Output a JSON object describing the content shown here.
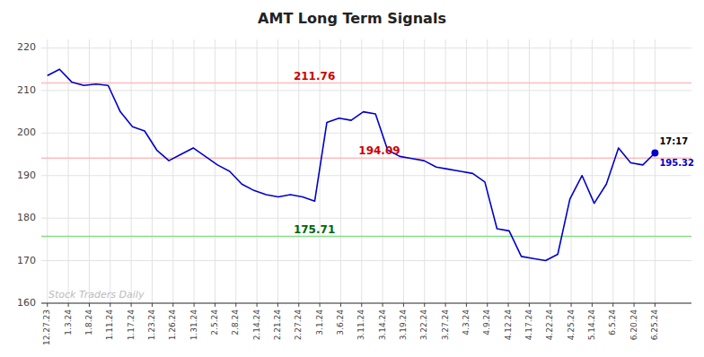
{
  "chart_data": {
    "type": "line",
    "title": "AMT Long Term Signals",
    "x": [
      0,
      1,
      2,
      3,
      4,
      5,
      6,
      7,
      8,
      9,
      10,
      11,
      12,
      13,
      14,
      15,
      16,
      17,
      18,
      19,
      20,
      21,
      22,
      23,
      24,
      25,
      26,
      27,
      28,
      29,
      30,
      31,
      32,
      33,
      34,
      35,
      36,
      37,
      38,
      39,
      40,
      41,
      42,
      43,
      44,
      45,
      46,
      47,
      48,
      49,
      50
    ],
    "values": [
      213.5,
      215.0,
      212.0,
      211.2,
      211.5,
      211.2,
      205.0,
      201.5,
      200.5,
      196.0,
      193.5,
      195.0,
      196.5,
      194.5,
      192.5,
      191.0,
      188.0,
      186.5,
      185.5,
      185.0,
      185.5,
      185.0,
      184.0,
      202.5,
      203.5,
      203.0,
      205.0,
      204.5,
      196.0,
      194.5,
      194.0,
      193.5,
      192.0,
      191.5,
      191.0,
      190.5,
      188.5,
      177.5,
      177.0,
      171.0,
      170.5,
      170.0,
      171.5,
      184.5,
      190.0,
      183.5,
      188.0,
      196.5,
      193.0,
      192.5,
      195.32
    ],
    "color": "#0000cc",
    "xlim": [
      -0.5,
      53
    ],
    "xticks": [
      {
        "value": 0,
        "label": "12.27.23"
      },
      {
        "value": 1.7241379310344827,
        "label": "1.3.24"
      },
      {
        "value": 3.4482758620689653,
        "label": "1.8.24"
      },
      {
        "value": 5.172413793103448,
        "label": "1.11.24"
      },
      {
        "value": 6.896551724137931,
        "label": "1.17.24"
      },
      {
        "value": 8.620689655172413,
        "label": "1.23.24"
      },
      {
        "value": 10.344827586206897,
        "label": "1.26.24"
      },
      {
        "value": 12.068965517241379,
        "label": "1.31.24"
      },
      {
        "value": 13.793103448275861,
        "label": "2.5.24"
      },
      {
        "value": 15.517241379310345,
        "label": "2.8.24"
      },
      {
        "value": 17.241379310344826,
        "label": "2.14.24"
      },
      {
        "value": 18.96551724137931,
        "label": "2.21.24"
      },
      {
        "value": 20.689655172413794,
        "label": "2.27.24"
      },
      {
        "value": 22.413793103448274,
        "label": "3.1.24"
      },
      {
        "value": 24.137931034482758,
        "label": "3.6.24"
      },
      {
        "value": 25.862068965517242,
        "label": "3.11.24"
      },
      {
        "value": 27.586206896551722,
        "label": "3.14.24"
      },
      {
        "value": 29.310344827586206,
        "label": "3.19.24"
      },
      {
        "value": 31.03448275862069,
        "label": "3.22.24"
      },
      {
        "value": 32.758620689655174,
        "label": "3.27.24"
      },
      {
        "value": 34.48275862068966,
        "label": "4.3.24"
      },
      {
        "value": 36.206896551724135,
        "label": "4.9.24"
      },
      {
        "value": 37.93103448275862,
        "label": "4.12.24"
      },
      {
        "value": 39.6551724137931,
        "label": "4.17.24"
      },
      {
        "value": 41.37931034482759,
        "label": "4.22.24"
      },
      {
        "value": 43.10344827586207,
        "label": "4.25.24"
      },
      {
        "value": 44.827586206896555,
        "label": "5.14.24"
      },
      {
        "value": 46.55172413793103,
        "label": "6.5.24"
      },
      {
        "value": 48.275862068965516,
        "label": "6.20.24"
      },
      {
        "value": 50.0,
        "label": "6.25.24"
      }
    ],
    "ylim": [
      160,
      222
    ],
    "yticks": [
      160,
      170,
      180,
      190,
      200,
      210,
      220
    ],
    "grid": true,
    "annotations": [
      {
        "text": "211.76",
        "y": 211.76,
        "color": "#cc0000",
        "line_color": "#ffbbbb"
      },
      {
        "text": "194.09",
        "y": 194.09,
        "color": "#cc0000",
        "line_color": "#ffbbbb"
      },
      {
        "text": "175.71",
        "y": 175.71,
        "color": "#006600",
        "line_color": "#88dd88"
      },
      {
        "text": "17:17"
      },
      {
        "text": "Stock Traders Daily",
        "color": "#bbbbbb"
      }
    ]
  }
}
